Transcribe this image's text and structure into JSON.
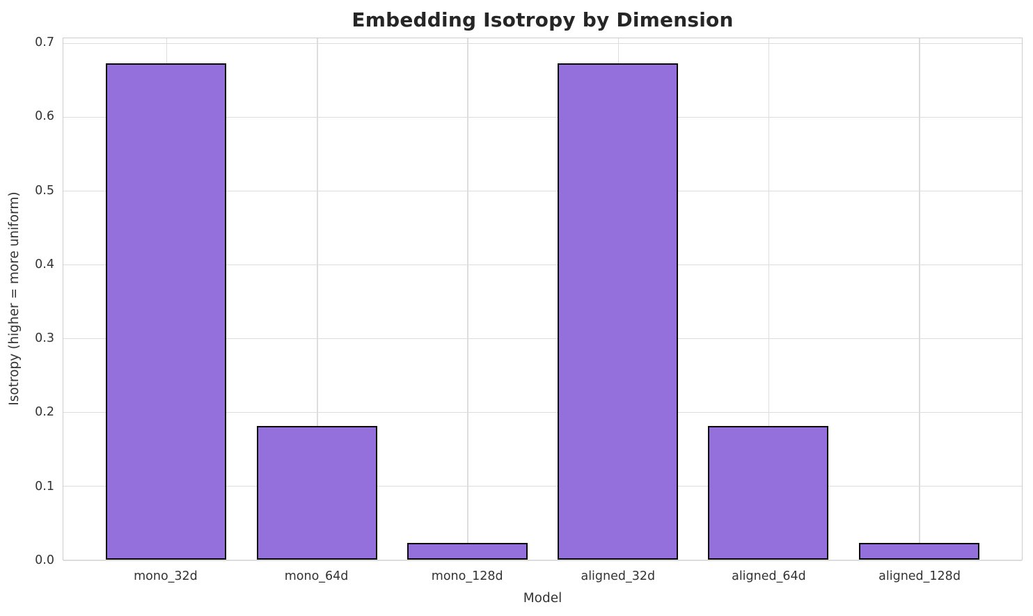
{
  "chart_data": {
    "type": "bar",
    "title": "Embedding Isotropy by Dimension",
    "xlabel": "Model",
    "ylabel": "Isotropy (higher = more uniform)",
    "categories": [
      "mono_32d",
      "mono_64d",
      "mono_128d",
      "aligned_32d",
      "aligned_64d",
      "aligned_128d"
    ],
    "values": [
      0.673,
      0.181,
      0.023,
      0.673,
      0.181,
      0.023
    ],
    "ytick_labels": [
      "0.0",
      "0.1",
      "0.2",
      "0.3",
      "0.4",
      "0.5",
      "0.6",
      "0.7"
    ],
    "yticks": [
      0.0,
      0.1,
      0.2,
      0.3,
      0.4,
      0.5,
      0.6,
      0.7
    ],
    "ylim": [
      0,
      0.7066
    ],
    "xlim": [
      -0.683,
      5.683
    ],
    "bar_width": 0.8,
    "grid": true,
    "legend": "none",
    "colors": {
      "bar_fill": "#9370DB",
      "bar_edge": "#0a0a0a",
      "grid": "#dcdcdc",
      "spine": "#cccccc",
      "title_text": "#262626",
      "tick_text": "#333333"
    }
  }
}
